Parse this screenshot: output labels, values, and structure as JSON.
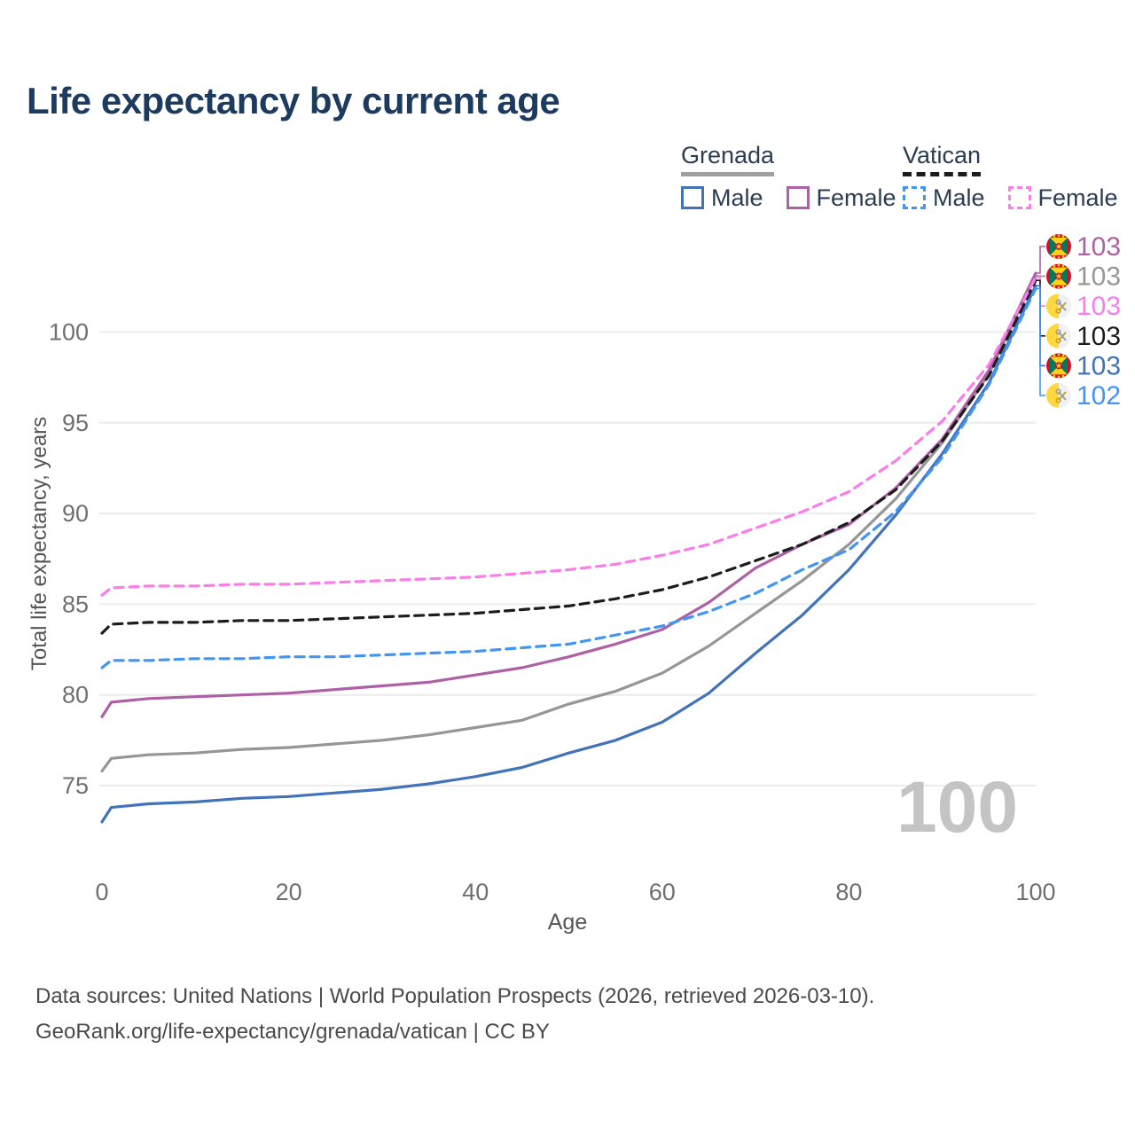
{
  "title": "Life expectancy by current age",
  "legend": {
    "groups": [
      {
        "label": "Grenada",
        "line_style": "solid",
        "underline_color": "#a0a0a0",
        "items": [
          {
            "label": "Male",
            "color": "#4273b8",
            "dashed": false
          },
          {
            "label": "Female",
            "color": "#ad60a5",
            "dashed": false
          }
        ]
      },
      {
        "label": "Vatican",
        "line_style": "dashed",
        "underline_color": "#1b1b1b",
        "items": [
          {
            "label": "Male",
            "color": "#4295f2",
            "dashed": true
          },
          {
            "label": "Female",
            "color": "#fb7de9",
            "dashed": true
          }
        ]
      }
    ]
  },
  "chart_data": {
    "type": "line",
    "title": "Life expectancy by current age",
    "xlabel": "Age",
    "ylabel": "Total life expectancy, years",
    "xlim": [
      0,
      100
    ],
    "ylim": [
      72,
      104
    ],
    "x_ticks": [
      0,
      20,
      40,
      60,
      80,
      100
    ],
    "y_ticks": [
      75,
      80,
      85,
      90,
      95,
      100
    ],
    "grid": "horizontal",
    "grid_color": "#ececec",
    "tick_color": "#6f6f6f",
    "x": [
      0,
      1,
      5,
      10,
      15,
      20,
      25,
      30,
      35,
      40,
      45,
      50,
      55,
      60,
      65,
      70,
      75,
      80,
      85,
      90,
      95,
      100
    ],
    "series": [
      {
        "name": "Grenada",
        "country": "Grenada",
        "sex": "both",
        "flag": "grenada",
        "color": "#969696",
        "dashed": false,
        "values": [
          75.8,
          76.5,
          76.7,
          76.8,
          77.0,
          77.1,
          77.3,
          77.5,
          77.8,
          78.2,
          78.6,
          79.5,
          80.2,
          81.2,
          82.7,
          84.5,
          86.3,
          88.3,
          90.8,
          93.9,
          97.7,
          103.1
        ]
      },
      {
        "name": "Grenada Male",
        "country": "Grenada",
        "sex": "male",
        "flag": "grenada",
        "color": "#4273b8",
        "dashed": false,
        "values": [
          73.0,
          73.8,
          74.0,
          74.1,
          74.3,
          74.4,
          74.6,
          74.8,
          75.1,
          75.5,
          76.0,
          76.8,
          77.5,
          78.5,
          80.1,
          82.3,
          84.4,
          86.9,
          89.9,
          93.3,
          97.2,
          102.55
        ]
      },
      {
        "name": "Grenada Female",
        "country": "Grenada",
        "sex": "female",
        "flag": "grenada",
        "color": "#ad60a5",
        "dashed": false,
        "values": [
          78.8,
          79.6,
          79.8,
          79.9,
          80.0,
          80.1,
          80.3,
          80.5,
          80.7,
          81.1,
          81.5,
          82.1,
          82.8,
          83.6,
          85.1,
          87.0,
          88.3,
          89.4,
          91.4,
          94.1,
          97.9,
          103.25
        ]
      },
      {
        "name": "Vatican",
        "country": "Vatican",
        "sex": "both",
        "flag": "vatican",
        "color": "#1c1c1c",
        "dashed": true,
        "values": [
          83.4,
          83.9,
          84.0,
          84.0,
          84.1,
          84.1,
          84.2,
          84.3,
          84.4,
          84.5,
          84.7,
          84.9,
          85.3,
          85.8,
          86.5,
          87.4,
          88.3,
          89.5,
          91.3,
          94.0,
          97.6,
          102.85
        ]
      },
      {
        "name": "Vatican Male",
        "country": "Vatican",
        "sex": "male",
        "flag": "vatican",
        "color": "#4295f2",
        "dashed": true,
        "values": [
          81.5,
          81.9,
          81.9,
          82.0,
          82.0,
          82.1,
          82.1,
          82.2,
          82.3,
          82.4,
          82.6,
          82.8,
          83.3,
          83.8,
          84.6,
          85.6,
          86.9,
          88.0,
          90.1,
          93.1,
          97.1,
          102.4
        ]
      },
      {
        "name": "Vatican Female",
        "country": "Vatican",
        "sex": "female",
        "flag": "vatican",
        "color": "#fb7de9",
        "dashed": true,
        "values": [
          85.5,
          85.9,
          86.0,
          86.0,
          86.1,
          86.1,
          86.2,
          86.3,
          86.4,
          86.5,
          86.7,
          86.9,
          87.2,
          87.7,
          88.3,
          89.2,
          90.1,
          91.2,
          92.9,
          95.1,
          98.2,
          103.0
        ]
      }
    ],
    "end_labels": [
      {
        "series": 2,
        "value": "103"
      },
      {
        "series": 0,
        "value": "103"
      },
      {
        "series": 5,
        "value": "103"
      },
      {
        "series": 3,
        "value": "103"
      },
      {
        "series": 1,
        "value": "103"
      },
      {
        "series": 4,
        "value": "102"
      }
    ],
    "legend_position": "top-right"
  },
  "watermark": "100",
  "footer": {
    "line1": "Data sources: United Nations | World Population Prospects (2026, retrieved 2026-03-10).",
    "line2": "GeoRank.org/life-expectancy/grenada/vatican | CC BY"
  }
}
